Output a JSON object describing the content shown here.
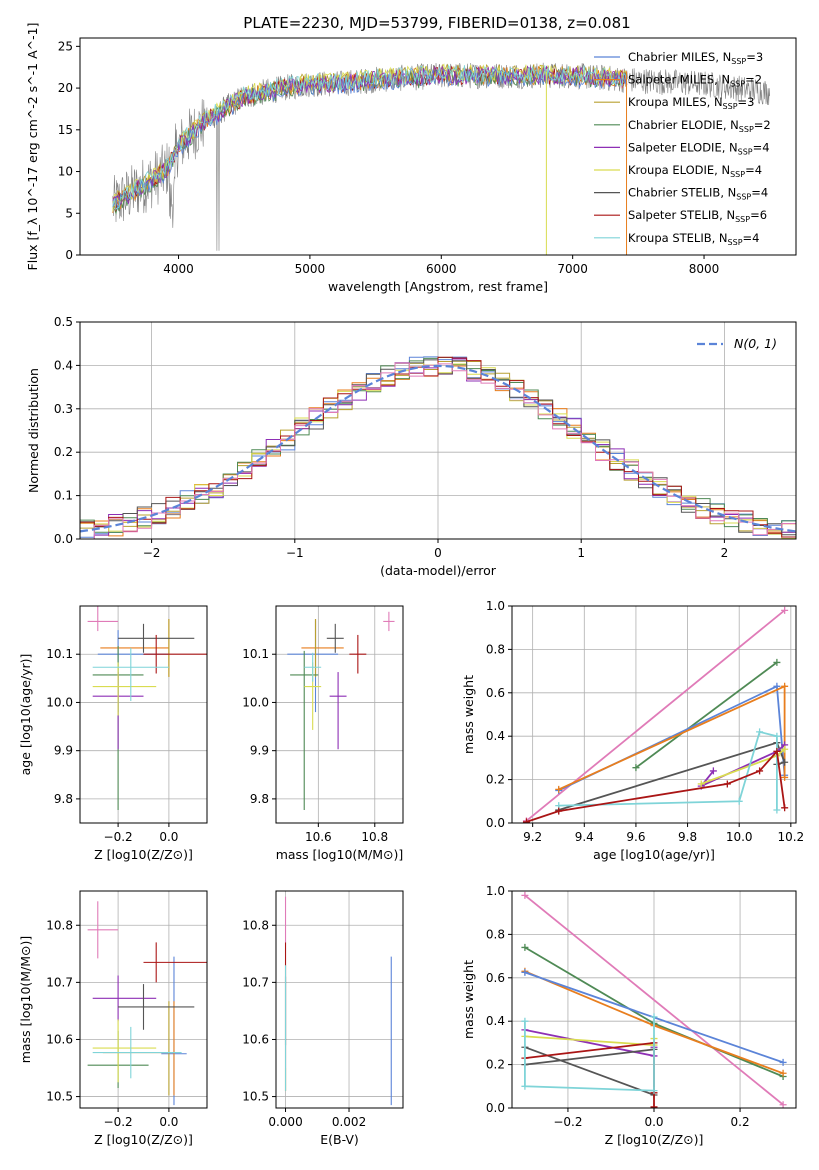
{
  "figure": {
    "title": "PLATE=2230, MJD=53799, FIBERID=0138, z=0.081"
  },
  "series_names": [
    "Chabrier MILES, N_SSP=3",
    "Salpeter MILES, N_SSP=2",
    "Kroupa MILES, N_SSP=3",
    "Chabrier ELODIE, N_SSP=2",
    "Salpeter ELODIE, N_SSP=4",
    "Kroupa ELODIE, N_SSP=4",
    "Chabrier STELIB, N_SSP=4",
    "Salpeter STELIB, N_SSP=6",
    "Kroupa STELIB, N_SSP=4"
  ],
  "series_colors": [
    "#5b84d8",
    "#e87e1e",
    "#b8a030",
    "#4f8a55",
    "#8e2fb5",
    "#d9dc50",
    "#555555",
    "#aa1515",
    "#7fd4d8"
  ],
  "chart_data": [
    {
      "id": "spectrum",
      "type": "line",
      "title": "PLATE=2230, MJD=53799, FIBERID=0138, z=0.081",
      "xlabel": "wavelength [Angstrom, rest frame]",
      "ylabel": "Flux [f_λ 10^-17 erg cm^-2 s^-1 A^-1]",
      "xlim": [
        3250,
        8700
      ],
      "ylim": [
        0,
        26
      ],
      "xticks": [
        4000,
        5000,
        6000,
        7000,
        8000
      ],
      "yticks": [
        0,
        5,
        10,
        15,
        20,
        25
      ],
      "grid": false,
      "legend": "right",
      "legend_entries": [
        {
          "base": "Chabrier MILES, N",
          "sub": "SSP",
          "tail": "=3"
        },
        {
          "base": "Salpeter MILES, N",
          "sub": "SSP",
          "tail": "=2"
        },
        {
          "base": "Kroupa MILES, N",
          "sub": "SSP",
          "tail": "=3"
        },
        {
          "base": "Chabrier ELODIE, N",
          "sub": "SSP",
          "tail": "=2"
        },
        {
          "base": "Salpeter ELODIE, N",
          "sub": "SSP",
          "tail": "=4"
        },
        {
          "base": "Kroupa ELODIE, N",
          "sub": "SSP",
          "tail": "=4"
        },
        {
          "base": "Chabrier STELIB, N",
          "sub": "SSP",
          "tail": "=4"
        },
        {
          "base": "Salpeter STELIB, N",
          "sub": "SSP",
          "tail": "=6"
        },
        {
          "base": "Kroupa STELIB, N",
          "sub": "SSP",
          "tail": "=4"
        }
      ],
      "data_envelope": {
        "x": [
          3500,
          3700,
          3900,
          4000,
          4200,
          4500,
          4800,
          5000,
          5200,
          5500,
          6000,
          6500,
          7000,
          7400,
          8000,
          8500
        ],
        "y": [
          6,
          8,
          10,
          13,
          16,
          19,
          20,
          20.5,
          20.5,
          21,
          21.5,
          21.5,
          21.5,
          21,
          20.5,
          19.5
        ]
      }
    },
    {
      "id": "residuals",
      "type": "bar",
      "xlabel": "(data-model)/error",
      "ylabel": "Normed distribution",
      "xlim": [
        -2.5,
        2.5
      ],
      "ylim": [
        0,
        0.5
      ],
      "xticks": [
        -2,
        -1,
        0,
        1,
        2
      ],
      "yticks": [
        0.0,
        0.1,
        0.2,
        0.3,
        0.4,
        0.5
      ],
      "grid": true,
      "legend": "top-right",
      "legend_entry": "N(0, 1)",
      "bin_width": 0.1
    },
    {
      "id": "age_vs_Z",
      "type": "scatter",
      "xlabel": "Z [log10(Z/Z⊙)]",
      "ylabel": "age [log10(age/yr)]",
      "xlim": [
        -0.35,
        0.15
      ],
      "ylim": [
        9.75,
        10.2
      ],
      "xticks": [
        -0.2,
        0.0
      ],
      "yticks": [
        9.8,
        9.9,
        10.0,
        10.1
      ],
      "grid": true,
      "points": [
        {
          "x": -0.2,
          "y": 10.1,
          "xerr": [
            0.08,
            0.2
          ],
          "yerr": [
            0.12,
            0.05
          ],
          "c": 0
        },
        {
          "x": 0.0,
          "y": 10.113,
          "xerr": [
            0.27,
            0.0
          ],
          "yerr": [
            0.06,
            0.06
          ],
          "c": 1
        },
        {
          "x": 0.0,
          "y": 10.113,
          "xerr": [
            0.0,
            0.0
          ],
          "yerr": [
            0.06,
            0.06
          ],
          "c": 2
        },
        {
          "x": -0.2,
          "y": 10.057,
          "xerr": [
            0.1,
            0.1
          ],
          "yerr": [
            0.28,
            0.06
          ],
          "c": 3
        },
        {
          "x": -0.2,
          "y": 10.013,
          "xerr": [
            0.1,
            0.1
          ],
          "yerr": [
            0.11,
            0.05
          ],
          "c": 4
        },
        {
          "x": -0.2,
          "y": 10.033,
          "xerr": [
            0.1,
            0.15
          ],
          "yerr": [
            0.06,
            0.05
          ],
          "c": 5
        },
        {
          "x": -0.1,
          "y": 10.133,
          "xerr": [
            0.1,
            0.2
          ],
          "yerr": [
            0.03,
            0.03
          ],
          "c": 6
        },
        {
          "x": -0.05,
          "y": 10.1,
          "xerr": [
            0.05,
            0.2
          ],
          "yerr": [
            0.04,
            0.04
          ],
          "c": 7
        },
        {
          "x": -0.15,
          "y": 10.073,
          "xerr": [
            0.15,
            0.15
          ],
          "yerr": [
            0.07,
            0.04
          ],
          "c": 8
        },
        {
          "x": -0.28,
          "y": 10.168,
          "xerr": [
            0.04,
            0.08
          ],
          "yerr": [
            0.02,
            0.04
          ],
          "c": 9
        }
      ]
    },
    {
      "id": "age_vs_mass",
      "type": "scatter",
      "xlabel": "mass [log10(M/M⊙)]",
      "ylabel": "",
      "xlim": [
        10.45,
        10.9
      ],
      "ylim": [
        9.75,
        10.2
      ],
      "xticks": [
        10.6,
        10.8
      ],
      "yticks": [
        9.8,
        9.9,
        10.0,
        10.1
      ],
      "grid": true,
      "points": [
        {
          "x": 10.59,
          "y": 10.1,
          "xerr": [
            0.1,
            0.08
          ],
          "yerr": [
            0.12,
            0.07
          ],
          "c": 0
        },
        {
          "x": 10.59,
          "y": 10.113,
          "xerr": [
            0.05,
            0.1
          ],
          "yerr": [
            0.06,
            0.06
          ],
          "c": 1
        },
        {
          "x": 10.59,
          "y": 10.113,
          "xerr": [
            0.0,
            0.0
          ],
          "yerr": [
            0.06,
            0.06
          ],
          "c": 2
        },
        {
          "x": 10.55,
          "y": 10.057,
          "xerr": [
            0.05,
            0.05
          ],
          "yerr": [
            0.28,
            0.05
          ],
          "c": 3
        },
        {
          "x": 10.67,
          "y": 10.013,
          "xerr": [
            0.03,
            0.03
          ],
          "yerr": [
            0.11,
            0.05
          ],
          "c": 4
        },
        {
          "x": 10.58,
          "y": 10.033,
          "xerr": [
            0.03,
            0.03
          ],
          "yerr": [
            0.09,
            0.05
          ],
          "c": 5
        },
        {
          "x": 10.66,
          "y": 10.133,
          "xerr": [
            0.03,
            0.03
          ],
          "yerr": [
            0.03,
            0.03
          ],
          "c": 6
        },
        {
          "x": 10.74,
          "y": 10.1,
          "xerr": [
            0.03,
            0.03
          ],
          "yerr": [
            0.04,
            0.04
          ],
          "c": 7
        },
        {
          "x": 10.58,
          "y": 10.073,
          "xerr": [
            0.03,
            0.03
          ],
          "yerr": [
            0.03,
            0.03
          ],
          "c": 8
        },
        {
          "x": 10.85,
          "y": 10.168,
          "xerr": [
            0.02,
            0.02
          ],
          "yerr": [
            0.02,
            0.02
          ],
          "c": 9
        }
      ]
    },
    {
      "id": "mass_weight_vs_age",
      "type": "line",
      "xlabel": "age [log10(age/yr)]",
      "ylabel": "mass weight",
      "xlim": [
        9.12,
        10.22
      ],
      "ylim": [
        0,
        1
      ],
      "xticks": [
        9.2,
        9.4,
        9.6,
        9.8,
        10.0,
        10.2
      ],
      "yticks": [
        0.0,
        0.2,
        0.4,
        0.6,
        0.8,
        1.0
      ],
      "grid": true,
      "series": [
        {
          "c": 9,
          "x": [
            9.176,
            10.176
          ],
          "y": [
            0.01,
            0.98
          ]
        },
        {
          "c": 3,
          "x": [
            9.6,
            10.146
          ],
          "y": [
            0.255,
            0.74
          ]
        },
        {
          "c": 0,
          "x": [
            9.301,
            10.146,
            10.176
          ],
          "y": [
            0.15,
            0.63,
            0.22
          ]
        },
        {
          "c": 1,
          "x": [
            9.301,
            10.176,
            10.176
          ],
          "y": [
            0.155,
            0.63,
            0.21
          ]
        },
        {
          "c": 6,
          "x": [
            9.301,
            10.146,
            10.176,
            10.146
          ],
          "y": [
            0.06,
            0.37,
            0.28,
            0.27
          ]
        },
        {
          "c": 4,
          "x": [
            9.9,
            9.853,
            10.146,
            10.176
          ],
          "y": [
            0.24,
            0.17,
            0.33,
            0.36
          ]
        },
        {
          "c": 5,
          "x": [
            9.853,
            10.146,
            10.176
          ],
          "y": [
            0.18,
            0.31,
            0.34
          ]
        },
        {
          "c": 8,
          "x": [
            9.301,
            10.0,
            10.079,
            10.146,
            10.146
          ],
          "y": [
            0.08,
            0.1,
            0.42,
            0.4,
            0.06
          ]
        },
        {
          "c": 7,
          "x": [
            9.176,
            9.301,
            9.954,
            10.079,
            10.146,
            10.176
          ],
          "y": [
            0.005,
            0.055,
            0.18,
            0.24,
            0.33,
            0.07
          ]
        }
      ]
    },
    {
      "id": "mass_vs_Z",
      "type": "scatter",
      "xlabel": "Z [log10(Z/Z⊙)]",
      "ylabel": "mass [log10(M/M⊙)]",
      "xlim": [
        -0.35,
        0.15
      ],
      "ylim": [
        10.48,
        10.86
      ],
      "xticks": [
        -0.2,
        0.0
      ],
      "yticks": [
        10.5,
        10.6,
        10.7,
        10.8
      ],
      "grid": true,
      "points": [
        {
          "x": 0.02,
          "y": 10.575,
          "xerr": [
            0.05,
            0.05
          ],
          "yerr": [
            0.09,
            0.17
          ],
          "c": 0
        },
        {
          "x": 0.02,
          "y": 10.577,
          "xerr": [
            0.28,
            0.0
          ],
          "yerr": [
            0.075,
            0.09
          ],
          "c": 1
        },
        {
          "x": 0.0,
          "y": 10.577,
          "xerr": [
            0.0,
            0.0
          ],
          "yerr": [
            0.075,
            0.09
          ],
          "c": 2
        },
        {
          "x": -0.2,
          "y": 10.555,
          "xerr": [
            0.12,
            0.12
          ],
          "yerr": [
            0.04,
            0.06
          ],
          "c": 3
        },
        {
          "x": -0.2,
          "y": 10.672,
          "xerr": [
            0.1,
            0.15
          ],
          "yerr": [
            0.04,
            0.04
          ],
          "c": 4
        },
        {
          "x": -0.2,
          "y": 10.585,
          "xerr": [
            0.1,
            0.15
          ],
          "yerr": [
            0.06,
            0.05
          ],
          "c": 5
        },
        {
          "x": -0.1,
          "y": 10.657,
          "xerr": [
            0.1,
            0.2
          ],
          "yerr": [
            0.04,
            0.04
          ],
          "c": 6
        },
        {
          "x": -0.05,
          "y": 10.735,
          "xerr": [
            0.05,
            0.2
          ],
          "yerr": [
            0.035,
            0.035
          ],
          "c": 7
        },
        {
          "x": -0.15,
          "y": 10.577,
          "xerr": [
            0.15,
            0.2
          ],
          "yerr": [
            0.045,
            0.045
          ],
          "c": 8
        },
        {
          "x": -0.28,
          "y": 10.792,
          "xerr": [
            0.04,
            0.08
          ],
          "yerr": [
            0.05,
            0.05
          ],
          "c": 9
        }
      ]
    },
    {
      "id": "mass_vs_EBV",
      "type": "scatter",
      "xlabel": "E(B-V)",
      "ylabel": "",
      "xlim": [
        -0.0003,
        0.0037
      ],
      "ylim": [
        10.48,
        10.86
      ],
      "xticks": [
        0.0,
        0.002
      ],
      "yticks": [
        10.5,
        10.6,
        10.7,
        10.8
      ],
      "grid": true,
      "points": [
        {
          "x": 0.00333,
          "y": 10.615,
          "xerr": [
            0,
            0
          ],
          "yerr": [
            0.13,
            0.13
          ],
          "c": 0
        },
        {
          "x": 0.0,
          "y": 10.64,
          "xerr": [
            0,
            0
          ],
          "yerr": [
            0.13,
            0.13
          ],
          "c": 7
        },
        {
          "x": 0.0,
          "y": 10.65,
          "xerr": [
            0,
            0
          ],
          "yerr": [
            0.06,
            0.06
          ],
          "c": 6
        },
        {
          "x": 0.0,
          "y": 10.53,
          "xerr": [
            0,
            0
          ],
          "yerr": [
            0.02,
            0.02
          ],
          "c": 5
        },
        {
          "x": 0.0,
          "y": 10.62,
          "xerr": [
            0,
            0
          ],
          "yerr": [
            0.11,
            0.11
          ],
          "c": 8
        },
        {
          "x": 0.0,
          "y": 10.81,
          "xerr": [
            0,
            0
          ],
          "yerr": [
            0.04,
            0.04
          ],
          "c": 9
        }
      ]
    },
    {
      "id": "mass_weight_vs_Z",
      "type": "line",
      "xlabel": "Z [log10(Z/Z⊙)]",
      "ylabel": "mass weight",
      "xlim": [
        -0.33,
        0.33
      ],
      "ylim": [
        0,
        1
      ],
      "xticks": [
        -0.2,
        0.0,
        0.2
      ],
      "yticks": [
        0.0,
        0.2,
        0.4,
        0.6,
        0.8,
        1.0
      ],
      "grid": true,
      "series": [
        {
          "c": 9,
          "x": [
            -0.3,
            0.3
          ],
          "y": [
            0.98,
            0.015
          ]
        },
        {
          "c": 3,
          "x": [
            -0.3,
            0.0,
            0.3
          ],
          "y": [
            0.74,
            0.39,
            0.145
          ]
        },
        {
          "c": 1,
          "x": [
            -0.3,
            0.0,
            0.3
          ],
          "y": [
            0.63,
            0.38,
            0.16
          ]
        },
        {
          "c": 0,
          "x": [
            -0.3,
            0.3
          ],
          "y": [
            0.625,
            0.21
          ]
        },
        {
          "c": 4,
          "x": [
            -0.3,
            0.0,
            0.0
          ],
          "y": [
            0.36,
            0.24,
            0.28
          ]
        },
        {
          "c": 5,
          "x": [
            -0.3,
            0.0,
            0.0
          ],
          "y": [
            0.33,
            0.29,
            0.32
          ]
        },
        {
          "c": 6,
          "x": [
            -0.3,
            0.0,
            0.0,
            -0.3
          ],
          "y": [
            0.28,
            0.06,
            0.27,
            0.2
          ]
        },
        {
          "c": 7,
          "x": [
            -0.3,
            0.0,
            0.0,
            0.0
          ],
          "y": [
            0.23,
            0.3,
            0.07,
            0.005
          ]
        },
        {
          "c": 8,
          "x": [
            -0.3,
            -0.3,
            0.0,
            0.0
          ],
          "y": [
            0.4,
            0.1,
            0.08,
            0.42
          ]
        }
      ]
    }
  ]
}
